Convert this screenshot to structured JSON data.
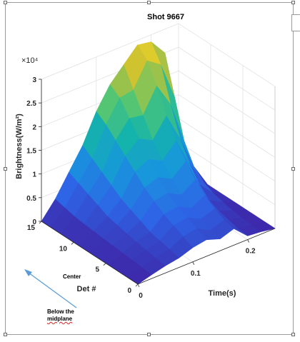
{
  "chart_data": {
    "type": "surface",
    "title": "Shot 9667",
    "xlabel": "Time(s)",
    "ylabel": "Det #",
    "zlabel": "Brightness(W/m²)",
    "z_exponent_label": "×10⁴",
    "x_ticks": [
      0,
      0.1,
      0.2
    ],
    "x_tick_labels": [
      "0",
      "0.1",
      "0.2"
    ],
    "y_ticks": [
      0,
      5,
      10,
      15
    ],
    "y_tick_labels": [
      "0",
      "5",
      "10",
      "15"
    ],
    "z_ticks": [
      0,
      5000,
      10000,
      15000,
      20000,
      25000,
      30000
    ],
    "z_tick_labels": [
      "0",
      "0.5",
      "1",
      "1.5",
      "2",
      "2.5",
      "3"
    ],
    "xlim": [
      0,
      0.25
    ],
    "ylim": [
      0,
      15
    ],
    "zlim": [
      0,
      30000
    ],
    "grid": true,
    "colormap": "parula",
    "time_s": [
      0,
      0.025,
      0.05,
      0.075,
      0.1,
      0.125,
      0.15,
      0.175,
      0.2,
      0.225,
      0.25
    ],
    "detectors": [
      0,
      1.5,
      3,
      4.5,
      6,
      7.5,
      9,
      10.5,
      12,
      13.5,
      15
    ],
    "brightness_w_m2": [
      [
        0,
        800,
        1500,
        2000,
        3000,
        3500,
        2500,
        3500,
        800,
        500,
        0
      ],
      [
        0,
        1000,
        1800,
        2500,
        4000,
        4500,
        3000,
        4000,
        1000,
        600,
        0
      ],
      [
        0,
        1200,
        2200,
        3000,
        5000,
        5500,
        4000,
        5000,
        1500,
        800,
        0
      ],
      [
        0,
        1400,
        2600,
        3500,
        6000,
        6500,
        5000,
        6500,
        2000,
        1000,
        0
      ],
      [
        0,
        1600,
        3000,
        4500,
        7500,
        8000,
        6500,
        8500,
        3000,
        1500,
        0
      ],
      [
        0,
        1800,
        3500,
        5500,
        9000,
        10000,
        8500,
        11000,
        5000,
        2000,
        0
      ],
      [
        0,
        2000,
        4000,
        6500,
        11000,
        12500,
        11000,
        14000,
        8000,
        3000,
        0
      ],
      [
        0,
        2200,
        5000,
        8000,
        13000,
        15500,
        14000,
        18000,
        12000,
        5000,
        0
      ],
      [
        0,
        2500,
        6000,
        9500,
        15000,
        18500,
        18000,
        23000,
        18000,
        9000,
        0
      ],
      [
        0,
        3000,
        7000,
        11000,
        17000,
        21500,
        22000,
        27000,
        25000,
        17000,
        0
      ],
      [
        0,
        3500,
        8000,
        12500,
        18500,
        23000,
        26000,
        29000,
        28500,
        25000,
        0
      ]
    ]
  },
  "annotations": {
    "center_label": "Center",
    "below_line1": "Below the",
    "below_line2": "midplane"
  },
  "colors": {
    "low": "#3e26a8",
    "mid": "#14b1ad",
    "high": "#f4c53f",
    "arrow": "#5b9bd5",
    "axis": "#262626",
    "grid": "#dedede"
  }
}
